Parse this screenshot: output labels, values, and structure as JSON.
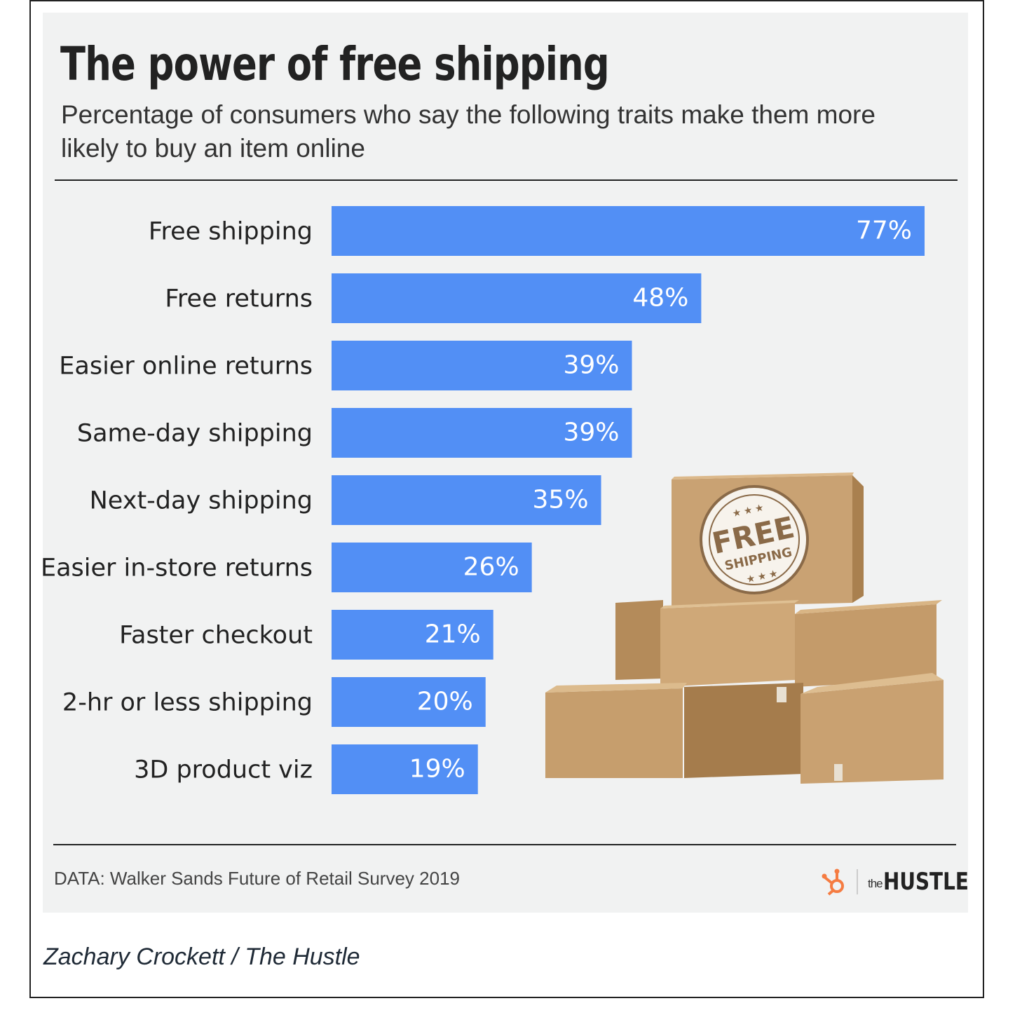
{
  "chart_data": {
    "type": "bar",
    "orientation": "horizontal",
    "title": "The power of free shipping",
    "subtitle": "Percentage of consumers who say the following traits make them more likely to buy an item online",
    "categories": [
      "Free shipping",
      "Free returns",
      "Easier online returns",
      "Same-day shipping",
      "Next-day shipping",
      "Easier in-store returns",
      "Faster checkout",
      "2-hr or less shipping",
      "3D product viz"
    ],
    "values": [
      77,
      48,
      39,
      39,
      35,
      26,
      21,
      20,
      19
    ],
    "value_labels": [
      "77%",
      "48%",
      "39%",
      "39%",
      "35%",
      "26%",
      "21%",
      "20%",
      "19%"
    ],
    "unit": "%",
    "xlim": [
      0,
      77
    ],
    "grid": false,
    "legend": "none",
    "bar_color": "#528ff5"
  },
  "source": "DATA: Walker Sands Future of Retail Survey 2019",
  "stamp": {
    "line1": "FREE",
    "line2": "SHIPPING"
  },
  "logo": {
    "icon": "hubspot-sprocket-icon",
    "the": "the",
    "name": "HUSTLE",
    "icon_color": "#f57c42"
  },
  "credit": "Zachary Crockett / The Hustle"
}
